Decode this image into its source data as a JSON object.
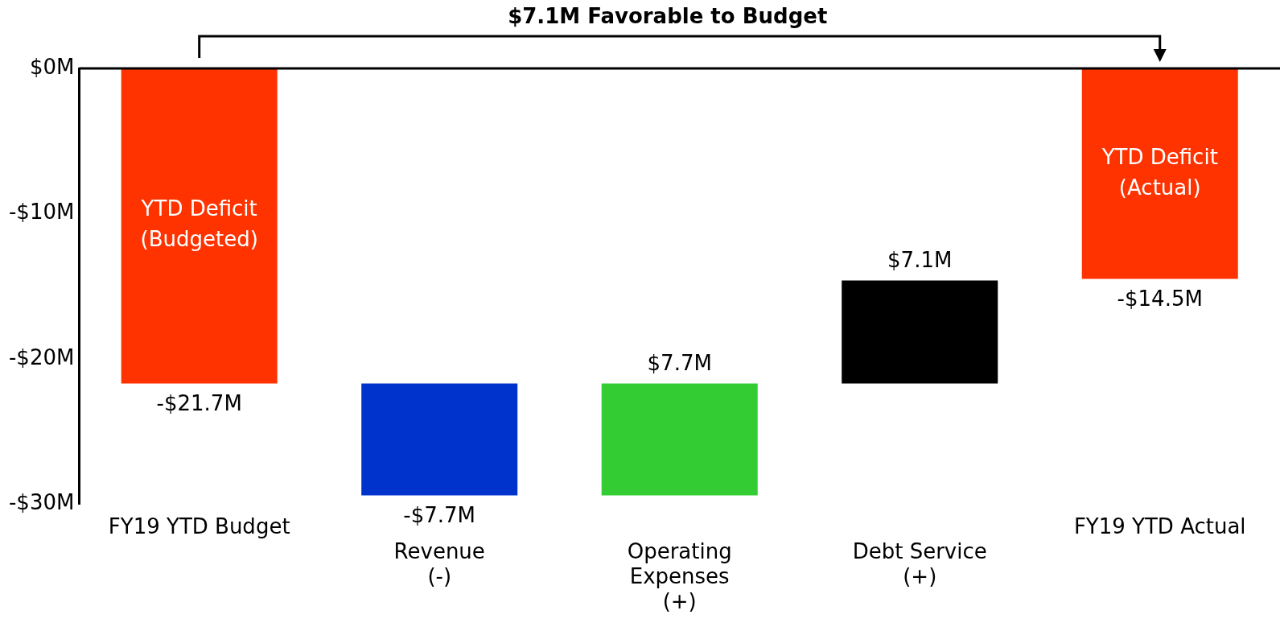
{
  "chart_data": {
    "type": "bar",
    "categories": [
      "FY19 YTD Budget",
      "Revenue\n(-)",
      "Operating\nExpenses\n(+)",
      "Debt Service\n(+)",
      "FY19 YTD Actual"
    ],
    "values": [
      -21.7,
      -7.7,
      7.7,
      7.1,
      -14.5
    ],
    "base": [
      0,
      -21.7,
      -29.4,
      -21.7,
      0
    ],
    "colors": [
      "#ff3300",
      "#0033cc",
      "#33cc33",
      "#000000",
      "#ff3300"
    ],
    "value_labels": [
      "-$21.7M",
      "-$7.7M",
      "$7.7M",
      "$7.1M",
      "-$14.5M"
    ],
    "ylim": [
      -30,
      0
    ],
    "yticks": [
      {
        "value": 0,
        "label": "$0M"
      },
      {
        "value": -10,
        "label": "-$10M"
      },
      {
        "value": -20,
        "label": "-$20M"
      },
      {
        "value": -30,
        "label": "-$30M"
      }
    ],
    "ref_lines": [
      {
        "axis": "y",
        "value": 0
      }
    ],
    "annotations": [
      "$7.1M Favorable to Budget",
      "YTD Deficit\n(Budgeted)",
      "YTD Deficit\n(Actual)"
    ],
    "grid": false,
    "legend": false
  }
}
